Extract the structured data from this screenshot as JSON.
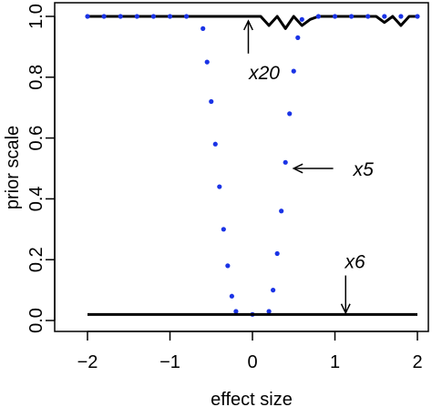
{
  "chart_data": {
    "type": "line",
    "xlabel": "effect size",
    "ylabel": "prior scale",
    "xlim": [
      -2,
      2
    ],
    "ylim": [
      0,
      1
    ],
    "x_ticks": [
      -2,
      -1,
      0,
      1,
      2
    ],
    "x_tick_labels": [
      "−2",
      "−1",
      "0",
      "1",
      "2"
    ],
    "y_ticks": [
      0.0,
      0.2,
      0.4,
      0.6,
      0.8,
      1.0
    ],
    "y_tick_labels": [
      "0.0",
      "0.2",
      "0.4",
      "0.6",
      "0.8",
      "1.0"
    ],
    "grid": false,
    "series": [
      {
        "style": "solid",
        "color": "#000000",
        "x": [
          -2.0,
          0.1,
          0.2,
          0.3,
          0.4,
          0.5,
          0.6,
          0.7,
          0.8,
          1.0,
          1.5,
          1.6,
          1.7,
          1.8,
          1.9,
          2.0
        ],
        "y": [
          1.0,
          1.0,
          0.97,
          1.0,
          0.96,
          1.0,
          0.97,
          0.99,
          1.0,
          1.0,
          1.0,
          0.98,
          1.0,
          0.97,
          1.0,
          1.0
        ]
      },
      {
        "style": "dotted",
        "color": "#1a33e6",
        "x": [
          -2.0,
          -1.8,
          -1.6,
          -1.4,
          -1.2,
          -1.0,
          -0.8,
          -0.6,
          -0.55,
          -0.5,
          -0.45,
          -0.4,
          -0.35,
          -0.3,
          -0.25,
          -0.2,
          0.0,
          0.2,
          0.25,
          0.3,
          0.35,
          0.4,
          0.45,
          0.5,
          0.55,
          0.6,
          0.8,
          1.0,
          1.2,
          1.4,
          1.6,
          1.8,
          2.0
        ],
        "y": [
          1.0,
          1.0,
          1.0,
          1.0,
          1.0,
          1.0,
          1.0,
          0.96,
          0.85,
          0.72,
          0.58,
          0.44,
          0.3,
          0.18,
          0.08,
          0.03,
          0.02,
          0.03,
          0.1,
          0.22,
          0.36,
          0.52,
          0.68,
          0.82,
          0.93,
          0.99,
          1.0,
          1.0,
          1.0,
          1.0,
          1.0,
          1.0,
          1.0
        ]
      },
      {
        "style": "solid",
        "color": "#000000",
        "x": [
          -2.0,
          2.0
        ],
        "y": [
          0.02,
          0.02
        ]
      }
    ],
    "annotations": [
      {
        "text": "x20",
        "arrow_x": -0.05,
        "arrow_y": 0.985,
        "text_x": 0.1,
        "text_y": 0.8
      },
      {
        "text": "x5",
        "arrow_x": 0.5,
        "arrow_y": 0.5,
        "text_x": 1.2,
        "text_y": 0.5
      },
      {
        "text": "x6",
        "arrow_x": 1.13,
        "arrow_y": 0.025,
        "text_x": 1.2,
        "text_y": 0.19
      }
    ]
  }
}
